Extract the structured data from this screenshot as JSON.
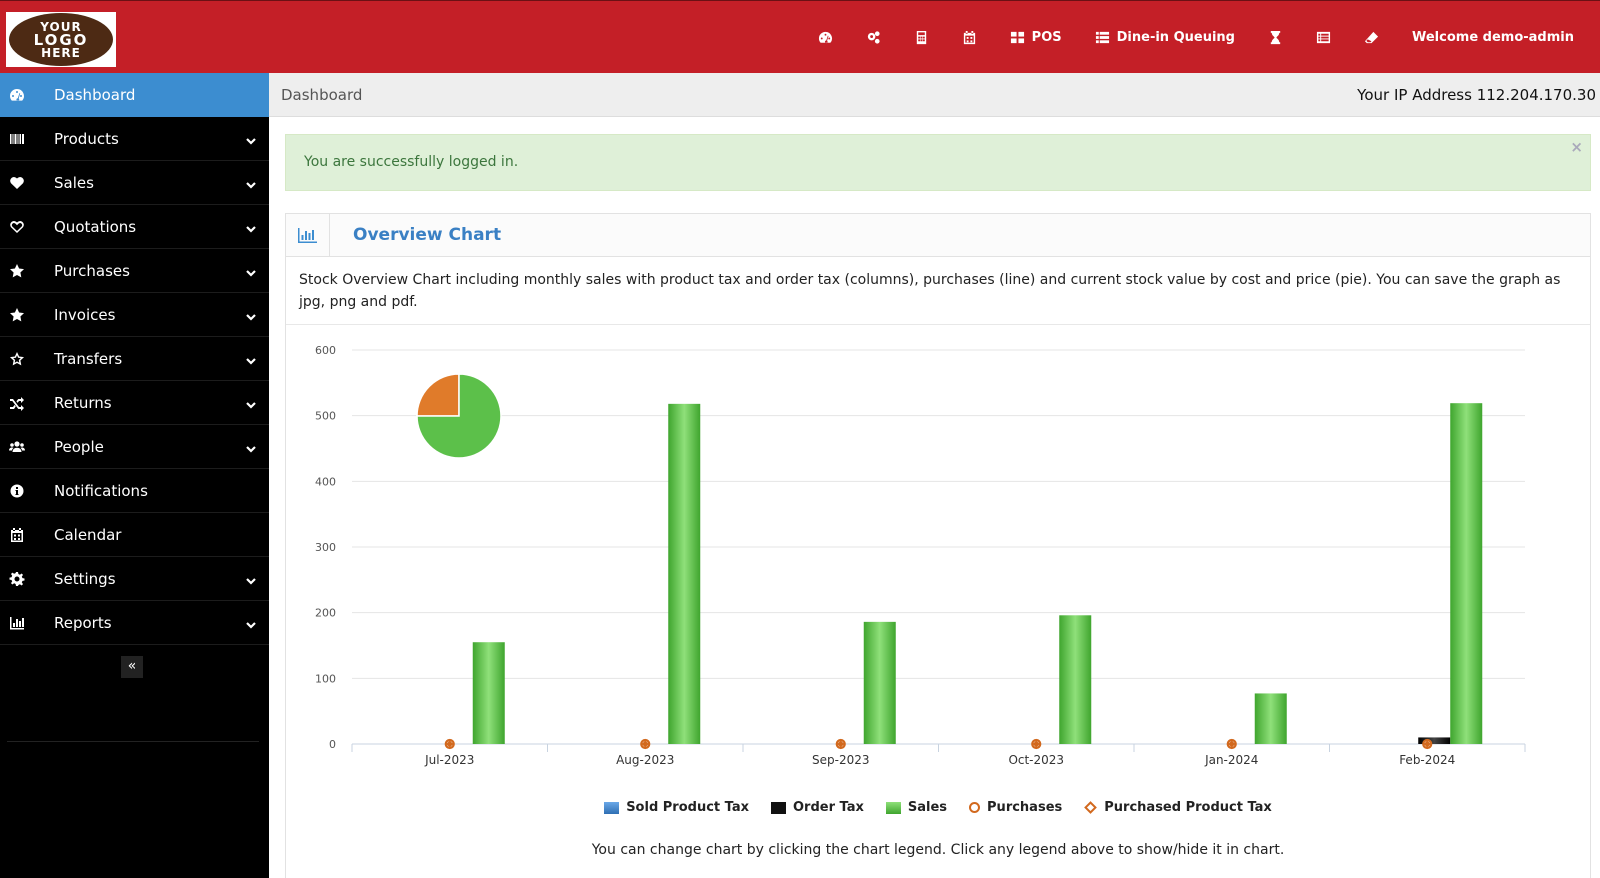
{
  "header": {
    "logo_text": [
      "YOUR",
      "LOGO",
      "HERE"
    ],
    "logo_color": "#4d2a14",
    "bar_color": "#c41f27",
    "nav": [
      {
        "icon": "dashboard-icon",
        "label": ""
      },
      {
        "icon": "cogs-icon",
        "label": ""
      },
      {
        "icon": "calculator-icon",
        "label": ""
      },
      {
        "icon": "calendar-icon",
        "label": ""
      },
      {
        "icon": "th-large-icon",
        "label": "POS"
      },
      {
        "icon": "list-icon",
        "label": "Dine-in Queuing"
      },
      {
        "icon": "hourglass-icon",
        "label": ""
      },
      {
        "icon": "list-alt-icon",
        "label": ""
      },
      {
        "icon": "eraser-icon",
        "label": ""
      }
    ],
    "welcome": "Welcome demo-admin"
  },
  "sidebar": {
    "accent": "#3c8dd0",
    "items": [
      {
        "label": "Dashboard",
        "icon": "dashboard-icon",
        "active": true,
        "has_sub": false
      },
      {
        "label": "Products",
        "icon": "barcode-icon",
        "active": false,
        "has_sub": true
      },
      {
        "label": "Sales",
        "icon": "heart-icon",
        "active": false,
        "has_sub": true
      },
      {
        "label": "Quotations",
        "icon": "heart-outline-icon",
        "active": false,
        "has_sub": true
      },
      {
        "label": "Purchases",
        "icon": "star-icon",
        "active": false,
        "has_sub": true
      },
      {
        "label": "Invoices",
        "icon": "star-icon",
        "active": false,
        "has_sub": true
      },
      {
        "label": "Transfers",
        "icon": "star-outline-icon",
        "active": false,
        "has_sub": true
      },
      {
        "label": "Returns",
        "icon": "random-icon",
        "active": false,
        "has_sub": true
      },
      {
        "label": "People",
        "icon": "users-icon",
        "active": false,
        "has_sub": true
      },
      {
        "label": "Notifications",
        "icon": "info-circle-icon",
        "active": false,
        "has_sub": false
      },
      {
        "label": "Calendar",
        "icon": "calendar-icon",
        "active": false,
        "has_sub": false
      },
      {
        "label": "Settings",
        "icon": "cog-icon",
        "active": false,
        "has_sub": true
      },
      {
        "label": "Reports",
        "icon": "bar-chart-icon",
        "active": false,
        "has_sub": true
      }
    ],
    "collapse_glyph": "«"
  },
  "breadcrumb": {
    "title": "Dashboard",
    "ip_text": "Your IP Address 112.204.170.30"
  },
  "alert": {
    "message": "You are successfully logged in.",
    "close": "×"
  },
  "panel": {
    "title": "Overview Chart",
    "description": "Stock Overview Chart including monthly sales with product tax and order tax (columns), purchases (line) and current stock value by cost and price (pie). You can save the graph as jpg, png and pdf.",
    "footer_note": "You can change chart by clicking the chart legend. Click any legend above to show/hide it in chart."
  },
  "chart_data": {
    "type": "bar",
    "categories": [
      "Jul-2023",
      "Aug-2023",
      "Sep-2023",
      "Oct-2023",
      "Jan-2024",
      "Feb-2024"
    ],
    "ylim": [
      0,
      600
    ],
    "yticks": [
      0,
      100,
      200,
      300,
      400,
      500,
      600
    ],
    "grid": true,
    "legend_position": "bottom",
    "series": [
      {
        "name": "Sold Product Tax",
        "kind": "column",
        "color": "#3a7fc8",
        "values": [
          0,
          0,
          0,
          0,
          0,
          0
        ]
      },
      {
        "name": "Order Tax",
        "kind": "column",
        "color": "#1a1a1a",
        "values": [
          0,
          0,
          0,
          0,
          0,
          10
        ]
      },
      {
        "name": "Sales",
        "kind": "column",
        "color": "#5cc04a",
        "values": [
          155,
          518,
          186,
          196,
          77,
          519
        ]
      },
      {
        "name": "Purchases",
        "kind": "line",
        "color": "#d2691e",
        "values": [
          0,
          0,
          0,
          0,
          0,
          0
        ]
      },
      {
        "name": "Purchased Product Tax",
        "kind": "line",
        "color": "#d2691e",
        "values": [
          0,
          0,
          0,
          0,
          0,
          0
        ]
      }
    ],
    "pie": {
      "slices": [
        {
          "color": "#e07b2a",
          "value": 25
        },
        {
          "color": "#5cc04a",
          "value": 75
        }
      ]
    }
  }
}
